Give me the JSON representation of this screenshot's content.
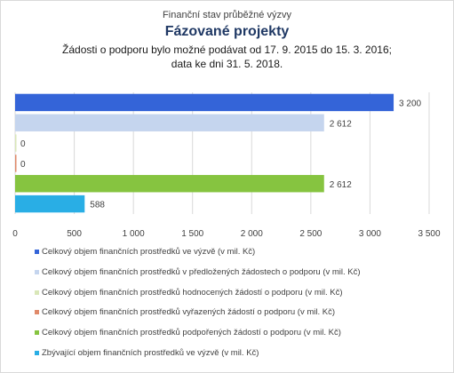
{
  "chart_data": {
    "type": "bar",
    "orientation": "horizontal",
    "title_lines": [
      "Finanční stav průběžné výzvy",
      "Fázované projekty",
      "Žádosti o podporu bylo možné  podávat od 17. 9. 2015 do 15. 3. 2016;",
      "data ke dni 31. 5. 2018."
    ],
    "xlim": [
      0,
      3500
    ],
    "ticks": [
      "0",
      "500",
      "1 000",
      "1 500",
      "2 000",
      "2 500",
      "3 000",
      "3 500"
    ],
    "tick_values": [
      0,
      500,
      1000,
      1500,
      2000,
      2500,
      3000,
      3500
    ],
    "grid": true,
    "legend_position": "bottom",
    "series": [
      {
        "name": "Celkový objem finančních prostředků ve výzvě (v mil. Kč)",
        "value": 3200,
        "label": "3 200",
        "color": "#3464d8"
      },
      {
        "name": "Celkový objem finančních prostředků v předložených žádostech o podporu (v mil. Kč)",
        "value": 2612,
        "label": "2 612",
        "color": "#c5d5ee"
      },
      {
        "name": "Celkový objem finančních prostředků hodnocených žádostí o podporu (v mil. Kč)",
        "value": 0,
        "label": "0",
        "color": "#d9e7b8"
      },
      {
        "name": "Celkový objem finančních prostředků vyřazených žádostí o podporu (v mil. Kč)",
        "value": 0,
        "label": "0",
        "color": "#e08a6a"
      },
      {
        "name": "Celkový objem finančních prostředků podpořených žádostí o podporu (v mil. Kč)",
        "value": 2612,
        "label": "2 612",
        "color": "#86c440"
      },
      {
        "name": "Zbývající objem finančních prostředků ve výzvě (v mil. Kč)",
        "value": 588,
        "label": "588",
        "color": "#29aee5"
      }
    ]
  }
}
